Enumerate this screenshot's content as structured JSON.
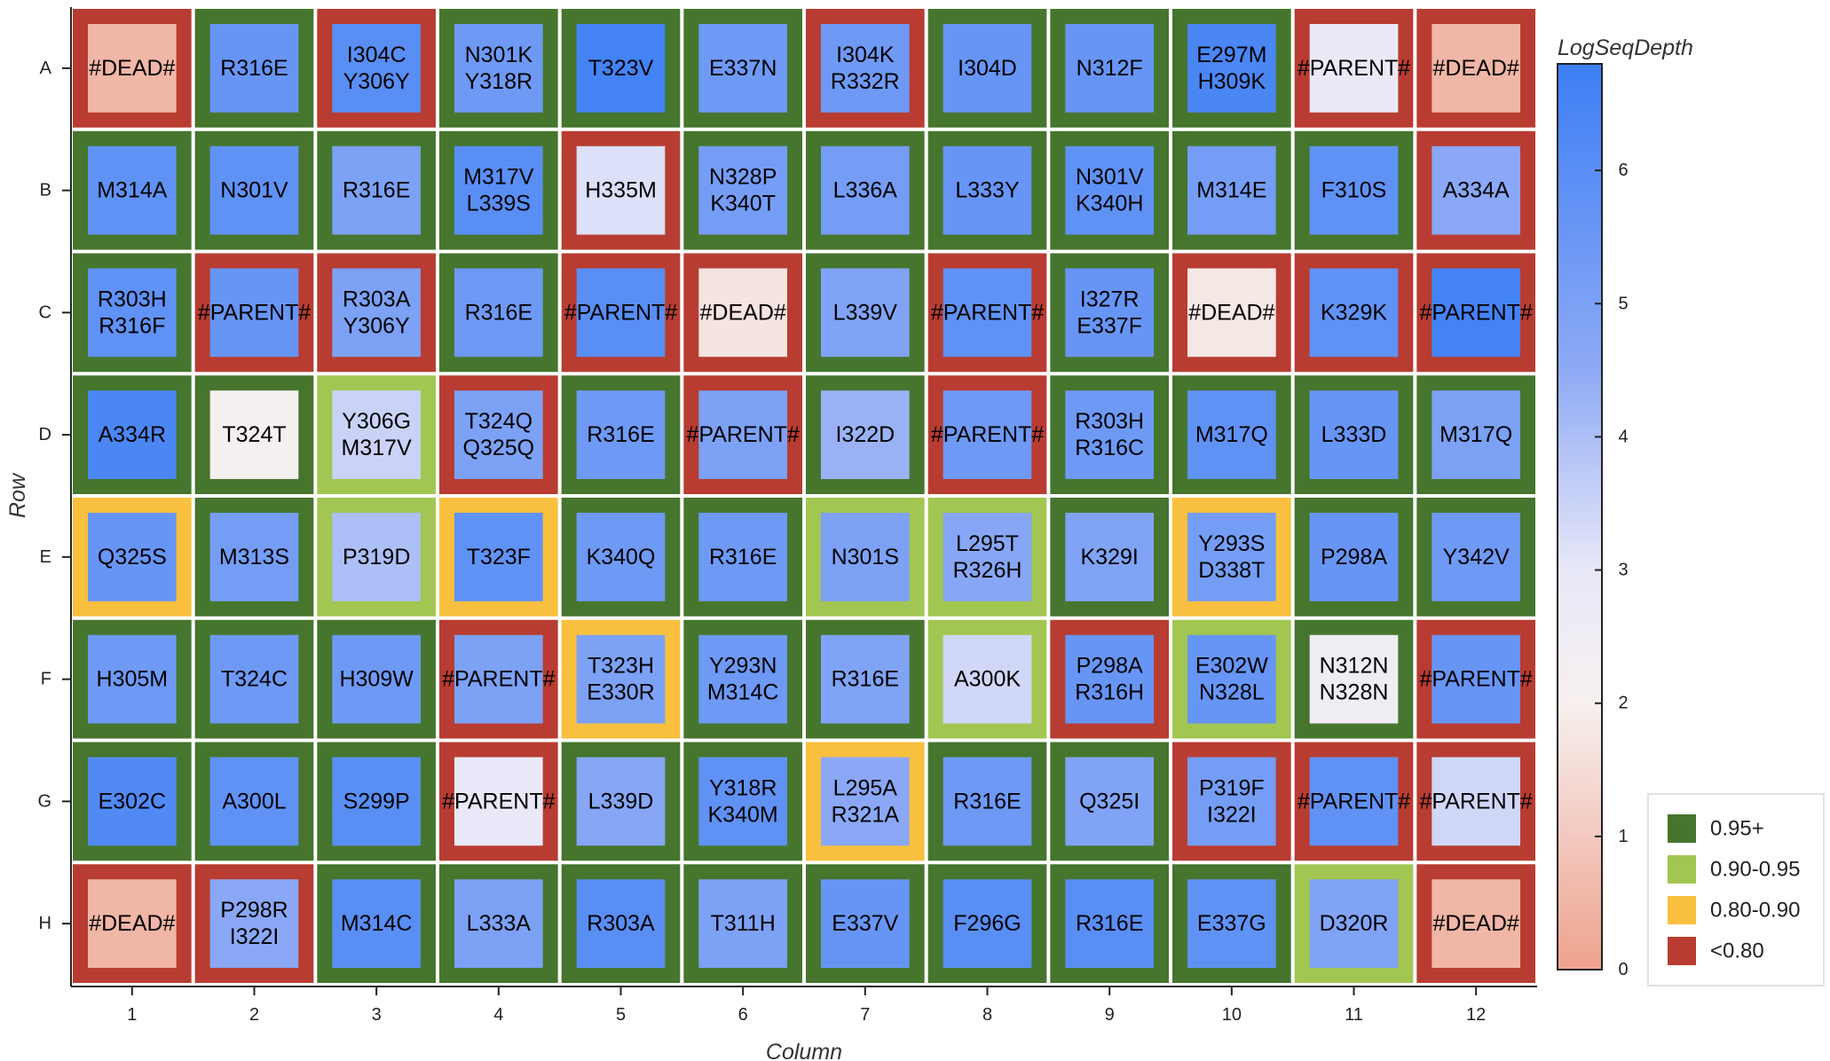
{
  "chart_data": {
    "type": "heatmap",
    "xlabel": "Column",
    "ylabel": "Row",
    "rows": [
      "A",
      "B",
      "C",
      "D",
      "E",
      "F",
      "G",
      "H"
    ],
    "columns": [
      "1",
      "2",
      "3",
      "4",
      "5",
      "6",
      "7",
      "8",
      "9",
      "10",
      "11",
      "12"
    ],
    "colorbar": {
      "title": "LogSeqDepth",
      "range": [
        0,
        6.8
      ],
      "ticks": [
        "0",
        "1",
        "2",
        "3",
        "4",
        "5",
        "6"
      ],
      "stops": [
        {
          "value": 0,
          "color": "#eea28d"
        },
        {
          "value": 2,
          "color": "#f7f0ef"
        },
        {
          "value": 3,
          "color": "#e8e8f8"
        },
        {
          "value": 4.5,
          "color": "#8eaaf5"
        },
        {
          "value": 6.8,
          "color": "#3d7ff5"
        }
      ]
    },
    "border_legend": [
      {
        "label": "0.95+",
        "color": "#46752e"
      },
      {
        "label": "0.90-0.95",
        "color": "#a2c651"
      },
      {
        "label": "0.80-0.90",
        "color": "#f8c03e"
      },
      {
        "label": "<0.80",
        "color": "#b83c31"
      }
    ],
    "wells": [
      {
        "row": "A",
        "col": 1,
        "label": [
          "#DEAD#"
        ],
        "depth": 0.5,
        "class": "<0.80"
      },
      {
        "row": "A",
        "col": 2,
        "label": [
          "R316E"
        ],
        "depth": 5.6,
        "class": "0.95+"
      },
      {
        "row": "A",
        "col": 3,
        "label": [
          "I304C",
          "Y306Y"
        ],
        "depth": 6.0,
        "class": "<0.80"
      },
      {
        "row": "A",
        "col": 4,
        "label": [
          "N301K",
          "Y318R"
        ],
        "depth": 5.4,
        "class": "0.95+"
      },
      {
        "row": "A",
        "col": 5,
        "label": [
          "T323V"
        ],
        "depth": 6.6,
        "class": "0.95+"
      },
      {
        "row": "A",
        "col": 6,
        "label": [
          "E337N"
        ],
        "depth": 5.4,
        "class": "0.95+"
      },
      {
        "row": "A",
        "col": 7,
        "label": [
          "I304K",
          "R332R"
        ],
        "depth": 5.4,
        "class": "<0.80"
      },
      {
        "row": "A",
        "col": 8,
        "label": [
          "I304D"
        ],
        "depth": 5.6,
        "class": "0.95+"
      },
      {
        "row": "A",
        "col": 9,
        "label": [
          "N312F"
        ],
        "depth": 5.6,
        "class": "0.95+"
      },
      {
        "row": "A",
        "col": 10,
        "label": [
          "E297M",
          "H309K"
        ],
        "depth": 6.4,
        "class": "0.95+"
      },
      {
        "row": "A",
        "col": 11,
        "label": [
          "#PARENT#"
        ],
        "depth": 2.9,
        "class": "<0.80"
      },
      {
        "row": "A",
        "col": 12,
        "label": [
          "#DEAD#"
        ],
        "depth": 0.5,
        "class": "<0.80"
      },
      {
        "row": "B",
        "col": 1,
        "label": [
          "M314A"
        ],
        "depth": 5.8,
        "class": "0.95+"
      },
      {
        "row": "B",
        "col": 2,
        "label": [
          "N301V"
        ],
        "depth": 5.8,
        "class": "0.95+"
      },
      {
        "row": "B",
        "col": 3,
        "label": [
          "R316E"
        ],
        "depth": 5.0,
        "class": "0.95+"
      },
      {
        "row": "B",
        "col": 4,
        "label": [
          "M317V",
          "L339S"
        ],
        "depth": 6.0,
        "class": "0.95+"
      },
      {
        "row": "B",
        "col": 5,
        "label": [
          "H335M"
        ],
        "depth": 3.2,
        "class": "<0.80"
      },
      {
        "row": "B",
        "col": 6,
        "label": [
          "N328P",
          "K340T"
        ],
        "depth": 5.2,
        "class": "0.95+"
      },
      {
        "row": "B",
        "col": 7,
        "label": [
          "L336A"
        ],
        "depth": 5.2,
        "class": "0.95+"
      },
      {
        "row": "B",
        "col": 8,
        "label": [
          "L333Y"
        ],
        "depth": 5.6,
        "class": "0.95+"
      },
      {
        "row": "B",
        "col": 9,
        "label": [
          "N301V",
          "K340H"
        ],
        "depth": 5.8,
        "class": "0.95+"
      },
      {
        "row": "B",
        "col": 10,
        "label": [
          "M314E"
        ],
        "depth": 5.2,
        "class": "0.95+"
      },
      {
        "row": "B",
        "col": 11,
        "label": [
          "F310S"
        ],
        "depth": 5.8,
        "class": "0.95+"
      },
      {
        "row": "B",
        "col": 12,
        "label": [
          "A334A"
        ],
        "depth": 4.6,
        "class": "<0.80"
      },
      {
        "row": "C",
        "col": 1,
        "label": [
          "R303H",
          "R316F"
        ],
        "depth": 5.8,
        "class": "0.95+"
      },
      {
        "row": "C",
        "col": 2,
        "label": [
          "#PARENT#"
        ],
        "depth": 5.6,
        "class": "<0.80"
      },
      {
        "row": "C",
        "col": 3,
        "label": [
          "R303A",
          "Y306Y"
        ],
        "depth": 5.0,
        "class": "<0.80"
      },
      {
        "row": "C",
        "col": 4,
        "label": [
          "R316E"
        ],
        "depth": 5.4,
        "class": "0.95+"
      },
      {
        "row": "C",
        "col": 5,
        "label": [
          "#PARENT#"
        ],
        "depth": 6.0,
        "class": "<0.80"
      },
      {
        "row": "C",
        "col": 6,
        "label": [
          "#DEAD#"
        ],
        "depth": 1.7,
        "class": "<0.80"
      },
      {
        "row": "C",
        "col": 7,
        "label": [
          "L339V"
        ],
        "depth": 4.9,
        "class": "0.95+"
      },
      {
        "row": "C",
        "col": 8,
        "label": [
          "#PARENT#"
        ],
        "depth": 5.8,
        "class": "<0.80"
      },
      {
        "row": "C",
        "col": 9,
        "label": [
          "I327R",
          "E337F"
        ],
        "depth": 5.6,
        "class": "0.95+"
      },
      {
        "row": "C",
        "col": 10,
        "label": [
          "#DEAD#"
        ],
        "depth": 1.8,
        "class": "<0.80"
      },
      {
        "row": "C",
        "col": 11,
        "label": [
          "K329K"
        ],
        "depth": 5.8,
        "class": "<0.80"
      },
      {
        "row": "C",
        "col": 12,
        "label": [
          "#PARENT#"
        ],
        "depth": 6.6,
        "class": "<0.80"
      },
      {
        "row": "D",
        "col": 1,
        "label": [
          "A334R"
        ],
        "depth": 6.4,
        "class": "0.95+"
      },
      {
        "row": "D",
        "col": 2,
        "label": [
          "T324T"
        ],
        "depth": 2.1,
        "class": "0.95+"
      },
      {
        "row": "D",
        "col": 3,
        "label": [
          "Y306G",
          "M317V"
        ],
        "depth": 3.5,
        "class": "0.90-0.95"
      },
      {
        "row": "D",
        "col": 4,
        "label": [
          "T324Q",
          "Q325Q"
        ],
        "depth": 5.0,
        "class": "<0.80"
      },
      {
        "row": "D",
        "col": 5,
        "label": [
          "R316E"
        ],
        "depth": 5.4,
        "class": "0.95+"
      },
      {
        "row": "D",
        "col": 6,
        "label": [
          "#PARENT#"
        ],
        "depth": 5.0,
        "class": "<0.80"
      },
      {
        "row": "D",
        "col": 7,
        "label": [
          "I322D"
        ],
        "depth": 4.3,
        "class": "0.95+"
      },
      {
        "row": "D",
        "col": 8,
        "label": [
          "#PARENT#"
        ],
        "depth": 5.4,
        "class": "<0.80"
      },
      {
        "row": "D",
        "col": 9,
        "label": [
          "R303H",
          "R316C"
        ],
        "depth": 5.4,
        "class": "0.95+"
      },
      {
        "row": "D",
        "col": 10,
        "label": [
          "M317Q"
        ],
        "depth": 5.8,
        "class": "0.95+"
      },
      {
        "row": "D",
        "col": 11,
        "label": [
          "L333D"
        ],
        "depth": 5.6,
        "class": "0.95+"
      },
      {
        "row": "D",
        "col": 12,
        "label": [
          "M317Q"
        ],
        "depth": 5.0,
        "class": "0.95+"
      },
      {
        "row": "E",
        "col": 1,
        "label": [
          "Q325S"
        ],
        "depth": 5.6,
        "class": "0.80-0.90"
      },
      {
        "row": "E",
        "col": 2,
        "label": [
          "M313S"
        ],
        "depth": 5.2,
        "class": "0.95+"
      },
      {
        "row": "E",
        "col": 3,
        "label": [
          "P319D"
        ],
        "depth": 4.0,
        "class": "0.90-0.95"
      },
      {
        "row": "E",
        "col": 4,
        "label": [
          "T323F"
        ],
        "depth": 5.8,
        "class": "0.80-0.90"
      },
      {
        "row": "E",
        "col": 5,
        "label": [
          "K340Q"
        ],
        "depth": 5.4,
        "class": "0.95+"
      },
      {
        "row": "E",
        "col": 6,
        "label": [
          "R316E"
        ],
        "depth": 5.4,
        "class": "0.95+"
      },
      {
        "row": "E",
        "col": 7,
        "label": [
          "N301S"
        ],
        "depth": 5.0,
        "class": "0.90-0.95"
      },
      {
        "row": "E",
        "col": 8,
        "label": [
          "L295T",
          "R326H"
        ],
        "depth": 4.7,
        "class": "0.90-0.95"
      },
      {
        "row": "E",
        "col": 9,
        "label": [
          "K329I"
        ],
        "depth": 4.9,
        "class": "0.95+"
      },
      {
        "row": "E",
        "col": 10,
        "label": [
          "Y293S",
          "D338T"
        ],
        "depth": 5.2,
        "class": "0.80-0.90"
      },
      {
        "row": "E",
        "col": 11,
        "label": [
          "P298A"
        ],
        "depth": 5.6,
        "class": "0.95+"
      },
      {
        "row": "E",
        "col": 12,
        "label": [
          "Y342V"
        ],
        "depth": 5.4,
        "class": "0.95+"
      },
      {
        "row": "F",
        "col": 1,
        "label": [
          "H305M"
        ],
        "depth": 5.4,
        "class": "0.95+"
      },
      {
        "row": "F",
        "col": 2,
        "label": [
          "T324C"
        ],
        "depth": 5.4,
        "class": "0.95+"
      },
      {
        "row": "F",
        "col": 3,
        "label": [
          "H309W"
        ],
        "depth": 5.4,
        "class": "0.95+"
      },
      {
        "row": "F",
        "col": 4,
        "label": [
          "#PARENT#"
        ],
        "depth": 5.0,
        "class": "<0.80"
      },
      {
        "row": "F",
        "col": 5,
        "label": [
          "T323H",
          "E330R"
        ],
        "depth": 5.0,
        "class": "0.80-0.90"
      },
      {
        "row": "F",
        "col": 6,
        "label": [
          "Y293N",
          "M314C"
        ],
        "depth": 5.4,
        "class": "0.95+"
      },
      {
        "row": "F",
        "col": 7,
        "label": [
          "R316E"
        ],
        "depth": 4.9,
        "class": "0.95+"
      },
      {
        "row": "F",
        "col": 8,
        "label": [
          "A300K"
        ],
        "depth": 3.4,
        "class": "0.90-0.95"
      },
      {
        "row": "F",
        "col": 9,
        "label": [
          "P298A",
          "R316H"
        ],
        "depth": 5.6,
        "class": "<0.80"
      },
      {
        "row": "F",
        "col": 10,
        "label": [
          "E302W",
          "N328L"
        ],
        "depth": 5.6,
        "class": "0.90-0.95"
      },
      {
        "row": "F",
        "col": 11,
        "label": [
          "N312N",
          "N328N"
        ],
        "depth": 2.5,
        "class": "0.95+"
      },
      {
        "row": "F",
        "col": 12,
        "label": [
          "#PARENT#"
        ],
        "depth": 5.6,
        "class": "<0.80"
      },
      {
        "row": "G",
        "col": 1,
        "label": [
          "E302C"
        ],
        "depth": 6.2,
        "class": "0.95+"
      },
      {
        "row": "G",
        "col": 2,
        "label": [
          "A300L"
        ],
        "depth": 5.8,
        "class": "0.95+"
      },
      {
        "row": "G",
        "col": 3,
        "label": [
          "S299P"
        ],
        "depth": 6.0,
        "class": "0.95+"
      },
      {
        "row": "G",
        "col": 4,
        "label": [
          "#PARENT#"
        ],
        "depth": 3.0,
        "class": "<0.80"
      },
      {
        "row": "G",
        "col": 5,
        "label": [
          "L339D"
        ],
        "depth": 4.7,
        "class": "0.95+"
      },
      {
        "row": "G",
        "col": 6,
        "label": [
          "Y318R",
          "K340M"
        ],
        "depth": 5.8,
        "class": "0.95+"
      },
      {
        "row": "G",
        "col": 7,
        "label": [
          "L295A",
          "R321A"
        ],
        "depth": 4.6,
        "class": "0.80-0.90"
      },
      {
        "row": "G",
        "col": 8,
        "label": [
          "R316E"
        ],
        "depth": 5.4,
        "class": "0.95+"
      },
      {
        "row": "G",
        "col": 9,
        "label": [
          "Q325I"
        ],
        "depth": 4.9,
        "class": "0.95+"
      },
      {
        "row": "G",
        "col": 10,
        "label": [
          "P319F",
          "I322I"
        ],
        "depth": 5.2,
        "class": "<0.80"
      },
      {
        "row": "G",
        "col": 11,
        "label": [
          "#PARENT#"
        ],
        "depth": 5.8,
        "class": "<0.80"
      },
      {
        "row": "G",
        "col": 12,
        "label": [
          "#PARENT#"
        ],
        "depth": 3.4,
        "class": "<0.80"
      },
      {
        "row": "H",
        "col": 1,
        "label": [
          "#DEAD#"
        ],
        "depth": 0.5,
        "class": "<0.80"
      },
      {
        "row": "H",
        "col": 2,
        "label": [
          "P298R",
          "I322I"
        ],
        "depth": 4.6,
        "class": "<0.80"
      },
      {
        "row": "H",
        "col": 3,
        "label": [
          "M314C"
        ],
        "depth": 6.0,
        "class": "0.95+"
      },
      {
        "row": "H",
        "col": 4,
        "label": [
          "L333A"
        ],
        "depth": 5.0,
        "class": "0.95+"
      },
      {
        "row": "H",
        "col": 5,
        "label": [
          "R303A"
        ],
        "depth": 6.0,
        "class": "0.95+"
      },
      {
        "row": "H",
        "col": 6,
        "label": [
          "T311H"
        ],
        "depth": 5.0,
        "class": "0.95+"
      },
      {
        "row": "H",
        "col": 7,
        "label": [
          "E337V"
        ],
        "depth": 5.6,
        "class": "0.95+"
      },
      {
        "row": "H",
        "col": 8,
        "label": [
          "F296G"
        ],
        "depth": 6.0,
        "class": "0.95+"
      },
      {
        "row": "H",
        "col": 9,
        "label": [
          "R316E"
        ],
        "depth": 6.0,
        "class": "0.95+"
      },
      {
        "row": "H",
        "col": 10,
        "label": [
          "E337G"
        ],
        "depth": 5.8,
        "class": "0.95+"
      },
      {
        "row": "H",
        "col": 11,
        "label": [
          "D320R"
        ],
        "depth": 4.9,
        "class": "0.90-0.95"
      },
      {
        "row": "H",
        "col": 12,
        "label": [
          "#DEAD#"
        ],
        "depth": 0.5,
        "class": "<0.80"
      }
    ]
  }
}
